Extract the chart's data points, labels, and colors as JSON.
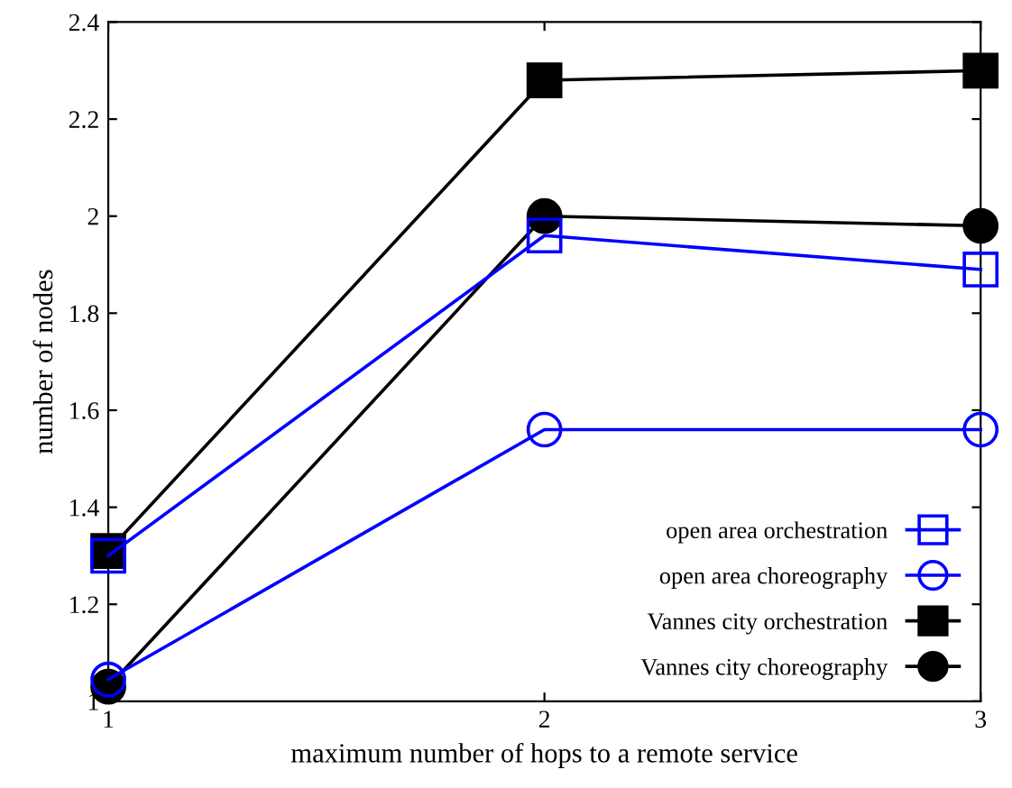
{
  "chart_data": {
    "type": "line",
    "xlabel": "maximum number of hops to a remote service",
    "ylabel": "number of nodes",
    "x": [
      1,
      2,
      3
    ],
    "xlim": [
      1,
      3
    ],
    "xticks": [
      1,
      2,
      3
    ],
    "ylim": [
      1,
      2.4
    ],
    "yticks": [
      1,
      1.2,
      1.4,
      1.6,
      1.8,
      2,
      2.2,
      2.4
    ],
    "grid": false,
    "legend": "bottom right",
    "line_style": "solid",
    "series": [
      {
        "name": "open area orchestration",
        "color": "#0000ff",
        "marker": "square",
        "values": [
          1.3,
          1.96,
          1.89
        ]
      },
      {
        "name": "open area choreography",
        "color": "#0000ff",
        "marker": "circle",
        "values": [
          1.045,
          1.56,
          1.56
        ]
      },
      {
        "name": "Vannes city orchestration",
        "color": "#000000",
        "marker": "square",
        "values": [
          1.31,
          2.28,
          2.3
        ]
      },
      {
        "name": "Vannes city choreography",
        "color": "#000000",
        "marker": "circle",
        "values": [
          1.03,
          2.0,
          1.98
        ]
      }
    ]
  }
}
